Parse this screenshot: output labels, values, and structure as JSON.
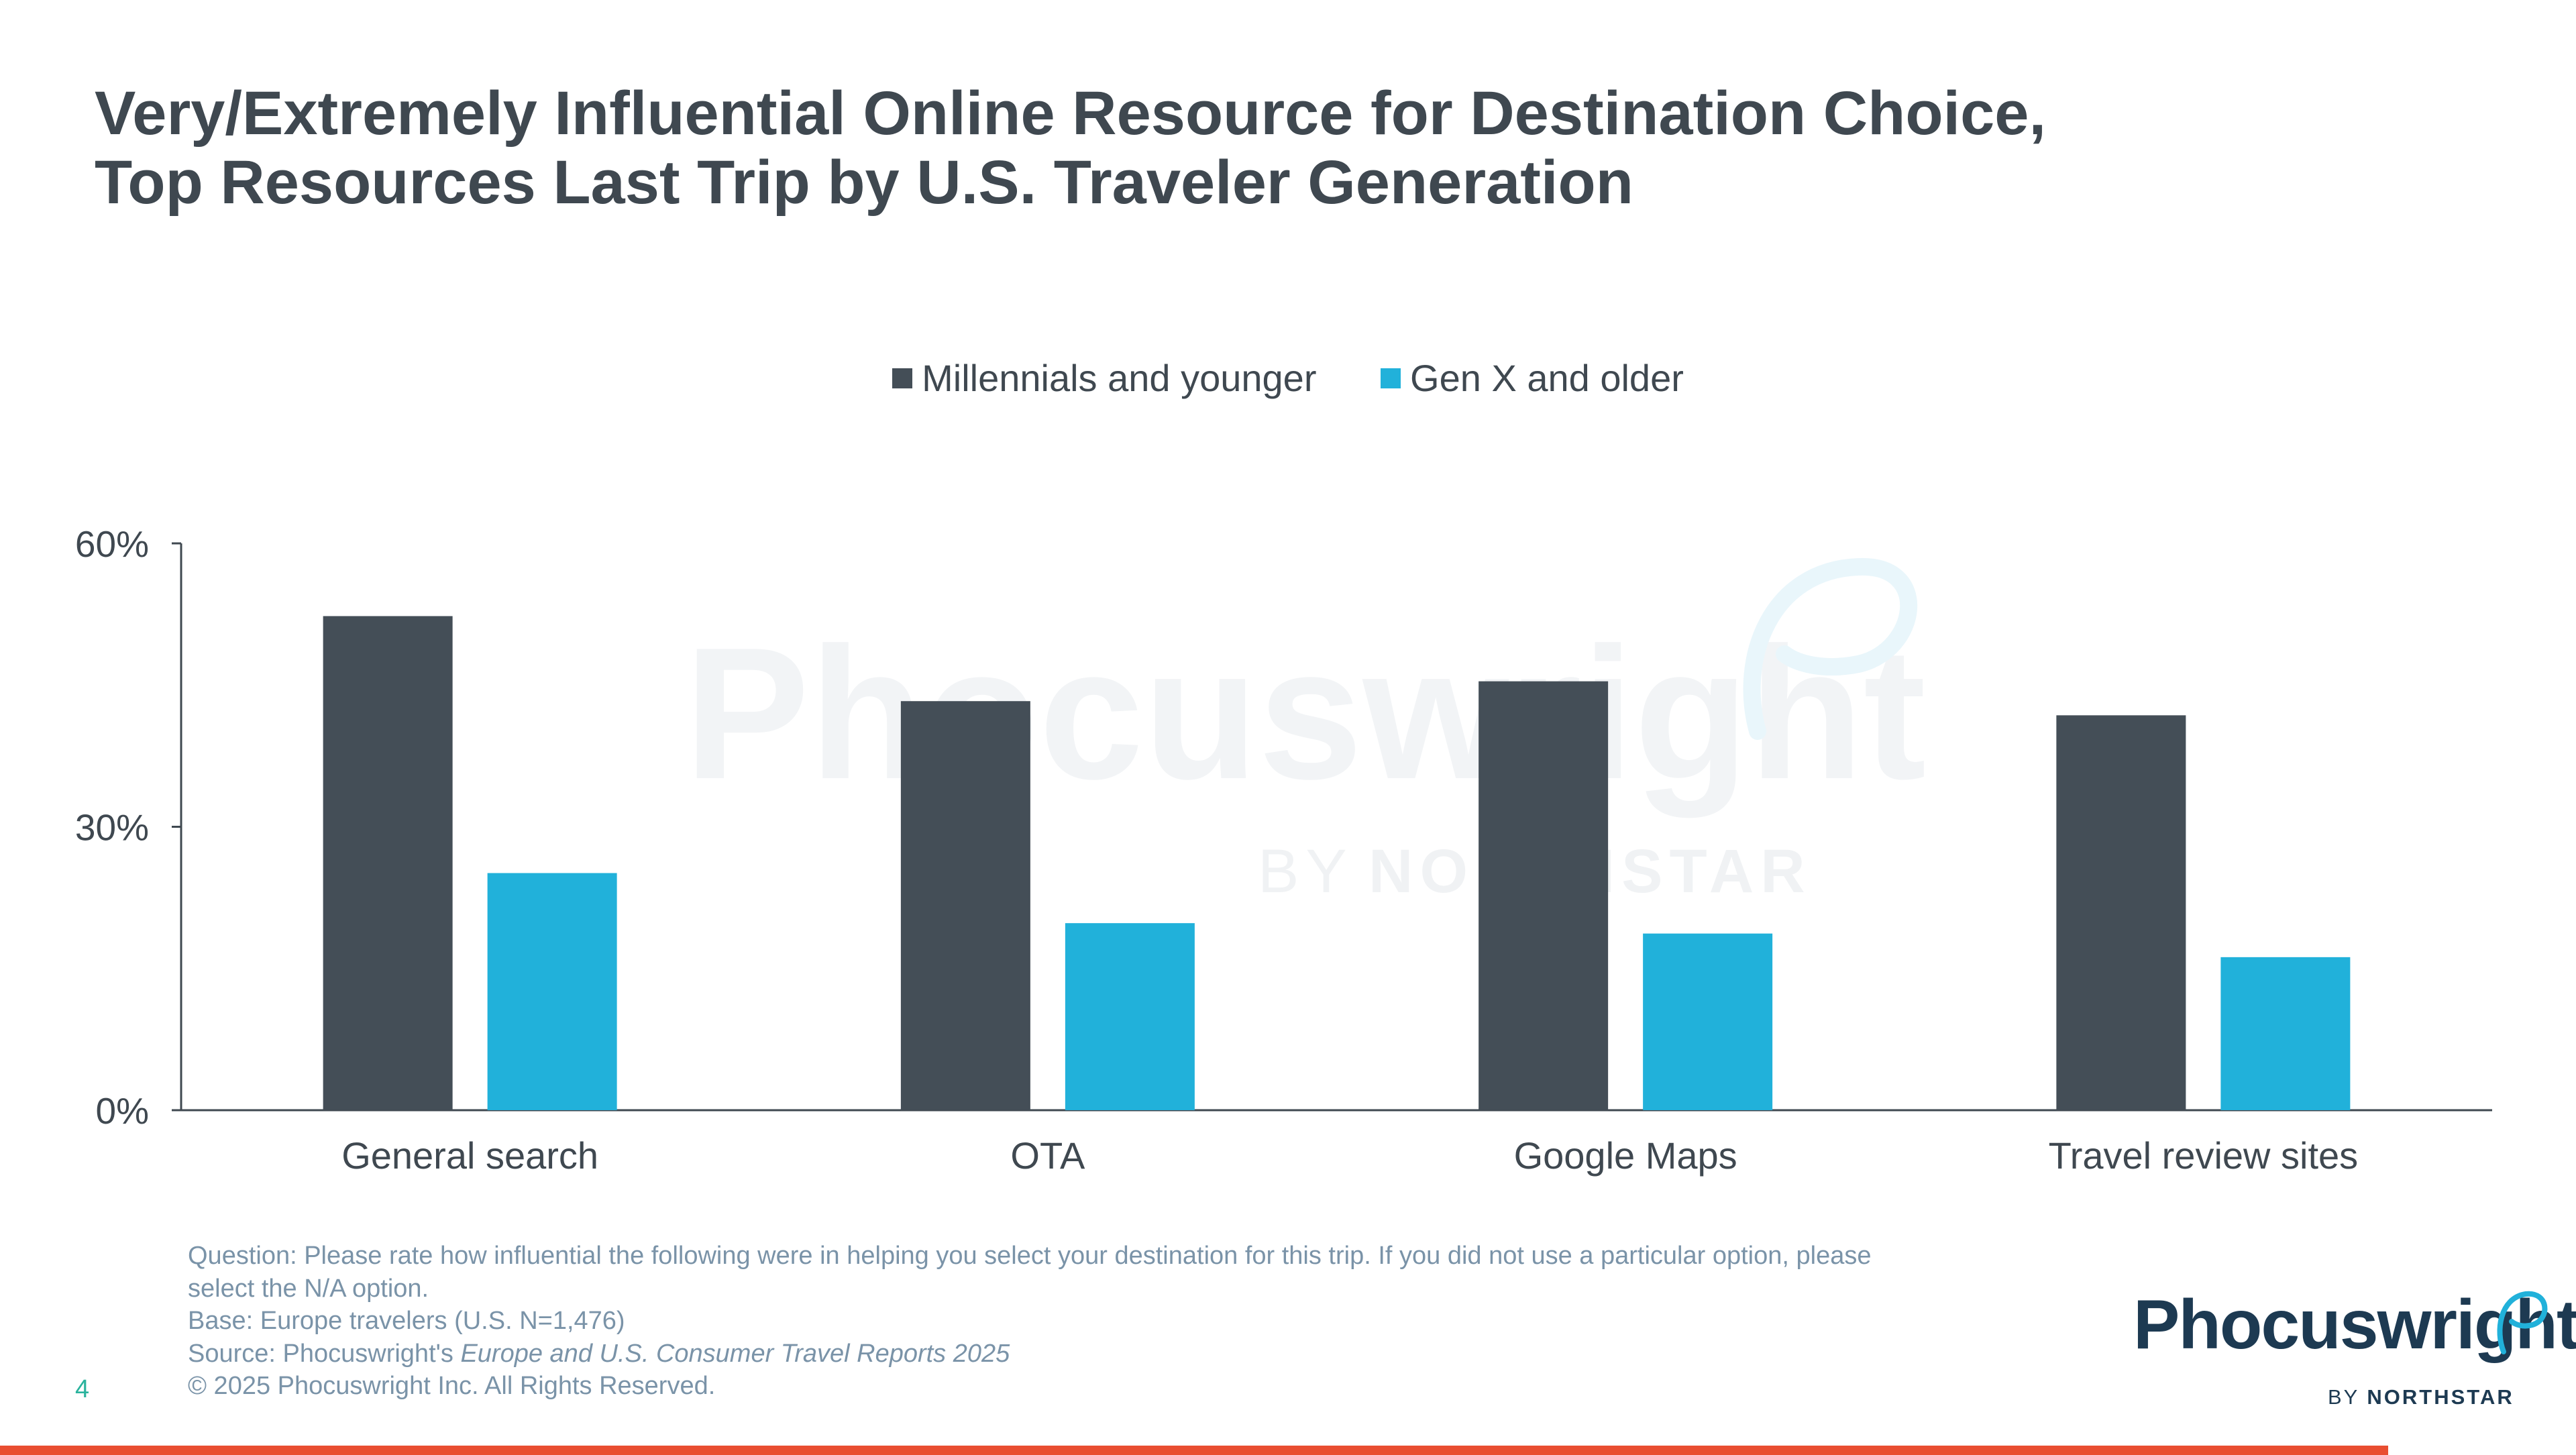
{
  "title": {
    "line1": "Very/Extremely Influential Online Resource for Destination Choice,",
    "line2": "Top Resources Last Trip by U.S. Traveler Generation"
  },
  "watermark": {
    "brand": "Phocuswright",
    "by": "BY",
    "company": "NORTHSTAR"
  },
  "chart_data": {
    "type": "bar",
    "title": "",
    "xlabel": "",
    "ylabel": "",
    "categories": [
      "General search",
      "OTA",
      "Google Maps",
      "Travel review sites"
    ],
    "series": [
      {
        "name": "Millennials and younger",
        "color": "#444e57",
        "values": [
          52.3,
          43.3,
          45.4,
          41.8
        ]
      },
      {
        "name": "Gen X and older",
        "color": "#21b1da",
        "values": [
          25.1,
          19.8,
          18.7,
          16.2
        ]
      }
    ],
    "ylim": [
      0,
      60
    ],
    "yticks": [
      0,
      30,
      60
    ],
    "ytick_labels": [
      "0%",
      "30%",
      "60%"
    ],
    "legend_position": "top-center",
    "grid": false
  },
  "footnote": {
    "question_line1": "Question: Please rate how influential the following were in helping you select your destination for this trip. If you did not use a particular option, please",
    "question_line2": "select the N/A option.",
    "base": "Base: Europe travelers (U.S. N=1,476)",
    "source_prefix": "Source: Phocuswright's ",
    "source_title": "Europe and U.S. Consumer Travel Reports 2025",
    "copyright": "© 2025 Phocuswright Inc. All Rights Reserved."
  },
  "page_number": "4",
  "logo": {
    "name": "Phocuswright",
    "by": "BY",
    "company": "NORTHSTAR"
  },
  "colors": {
    "title": "#3f4850",
    "accent_bar": "#e94e31",
    "footnote": "#7a93a8",
    "page_number": "#2ab39d",
    "logo": "#1d3a52",
    "logo_mark": "#21b1da"
  }
}
